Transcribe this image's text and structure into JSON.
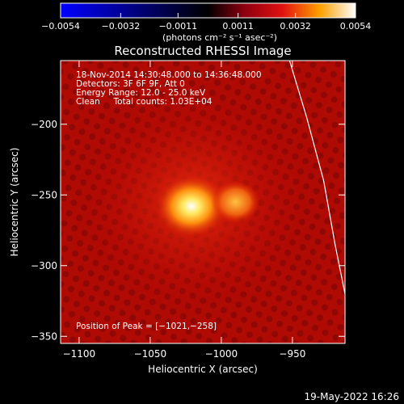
{
  "chart_data": {
    "type": "heatmap",
    "title": "Reconstructed RHESSI Image",
    "xlabel": "Heliocentric X (arcsec)",
    "ylabel": "Heliocentric Y (arcsec)",
    "xlim": [
      -1113,
      -913
    ],
    "ylim": [
      -355,
      -155
    ],
    "x_ticks": [
      -1100,
      -1050,
      -1000,
      -950
    ],
    "y_ticks": [
      -200,
      -250,
      -300,
      -350
    ],
    "x_tick_labels": [
      "−1100",
      "−1050",
      "−1000",
      "−950"
    ],
    "y_tick_labels": [
      "−200",
      "−250",
      "−300",
      "−350"
    ],
    "colorbar": {
      "range": [
        -0.0054,
        0.0054
      ],
      "ticks": [
        -0.0054,
        -0.0032,
        -0.0011,
        0.0011,
        0.0032,
        0.0054
      ],
      "tick_labels": [
        "−0.0054",
        "−0.0032",
        "−0.0011",
        "0.0011",
        "0.0032",
        "0.0054"
      ],
      "unit_label": "(photons cm⁻² s⁻¹ asec⁻²)",
      "colors": [
        "#0000ff",
        "#000000",
        "#cc0000",
        "#ffa000",
        "#ffffff"
      ]
    },
    "info_lines": [
      "18-Nov-2014 14:30:48.000 to 14:36:48.000",
      "Detectors: 3F 6F 9F, Att 0",
      "Energy Range: 12.0 - 25.0 keV",
      "Clean     Total counts: 1.03E+04"
    ],
    "peak_text": "Position of Peak = [−1021,−258]",
    "sources": [
      {
        "x": -1021,
        "y": -258,
        "peak": 1.0
      },
      {
        "x": -990,
        "y": -255,
        "peak": 0.45
      }
    ],
    "limb_curve": [
      [
        -952,
        -155
      ],
      [
        -940,
        -195
      ],
      [
        -928,
        -240
      ],
      [
        -920,
        -285
      ],
      [
        -913,
        -320
      ]
    ]
  },
  "footer_date": "19-May-2022 16:26"
}
